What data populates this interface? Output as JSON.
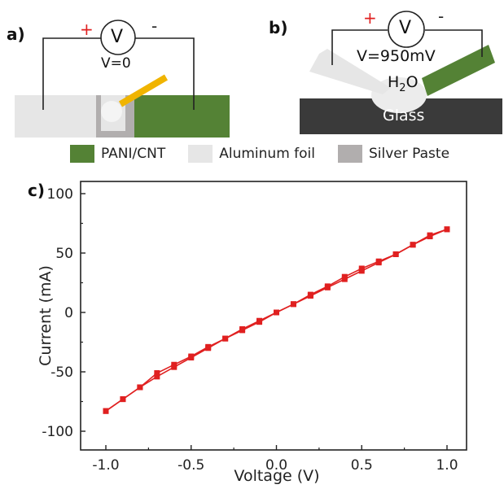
{
  "panels": {
    "a": "a)",
    "b": "b)",
    "c": "c)"
  },
  "schematic_a": {
    "plus": "+",
    "minus": "-",
    "meter": "V",
    "reading": "V=0"
  },
  "schematic_b": {
    "plus": "+",
    "minus": "-",
    "meter": "V",
    "reading": "V=950mV",
    "water": "H",
    "water_sub": "2",
    "water_o": "O",
    "substrate": "Glass"
  },
  "legend": [
    {
      "label": "PANI/CNT",
      "color": "#548235"
    },
    {
      "label": "Aluminum foil",
      "color": "#e6e6e6"
    },
    {
      "label": "Silver Paste",
      "color": "#b1aeae"
    }
  ],
  "colors": {
    "pani": "#548235",
    "foil": "#e6e6e6",
    "paste": "#b1aeae",
    "glass": "#3a3a3a",
    "wire": "#d9b400",
    "series": "#e02020"
  },
  "chart_data": {
    "type": "line",
    "xlabel": "Voltage (V)",
    "ylabel": "Current (mA)",
    "xlim": [
      -1.0,
      1.0
    ],
    "ylim": [
      -100,
      100
    ],
    "xticks": [
      "-1.0",
      "-0.5",
      "0.0",
      "0.5",
      "1.0"
    ],
    "yticks": [
      "100",
      "50",
      "0",
      "-50",
      "-100"
    ],
    "xtick_values": [
      -1.0,
      -0.5,
      0.0,
      0.5,
      1.0
    ],
    "ytick_values": [
      100,
      50,
      0,
      -50,
      -100
    ],
    "series": [
      {
        "color": "#e02020",
        "x": [
          -1.0,
          -0.9,
          -0.8,
          -0.7,
          -0.6,
          -0.5,
          -0.4,
          -0.3,
          -0.2,
          -0.1,
          0.0,
          0.1,
          0.2,
          0.3,
          0.4,
          0.5,
          0.6,
          0.7,
          0.8,
          0.9,
          1.0
        ],
        "y": [
          -83,
          -73,
          -63,
          -54,
          -46,
          -38,
          -30,
          -22,
          -15,
          -8,
          0,
          7,
          14,
          21,
          28,
          35,
          42,
          49,
          57,
          64,
          70
        ]
      },
      {
        "color": "#e02020",
        "x": [
          -1.0,
          -0.9,
          -0.8,
          -0.7,
          -0.6,
          -0.5,
          -0.4,
          -0.3,
          -0.2,
          -0.1,
          0.0,
          0.1,
          0.2,
          0.3,
          0.4,
          0.5,
          0.6,
          0.7,
          0.8,
          0.9,
          1.0
        ],
        "y": [
          -83,
          -73,
          -63,
          -51,
          -44,
          -37,
          -29,
          -22,
          -14,
          -7,
          0,
          7,
          15,
          22,
          30,
          37,
          43,
          49,
          57,
          65,
          70
        ]
      }
    ]
  }
}
